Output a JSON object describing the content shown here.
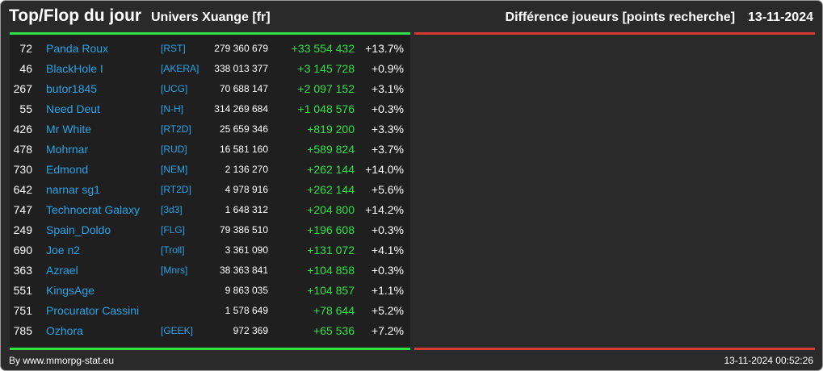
{
  "header": {
    "title": "Top/Flop du jour",
    "universe": "Univers Xuange [fr]",
    "metric": "Différence joueurs [points recherche]",
    "date": "13-11-2024"
  },
  "colors": {
    "top_accent": "#33e046",
    "flop_accent": "#d63a33",
    "link": "#29a3e6",
    "positive": "#33e046"
  },
  "top_rows": [
    {
      "rank": "72",
      "name": "Panda Roux",
      "alliance": "[RST]",
      "points": "279 360 679",
      "diff": "+33 554 432",
      "pct": "+13.7%"
    },
    {
      "rank": "46",
      "name": "BlackHole I",
      "alliance": "[AKERA]",
      "points": "338 013 377",
      "diff": "+3 145 728",
      "pct": "+0.9%"
    },
    {
      "rank": "267",
      "name": "butor1845",
      "alliance": "[UCG]",
      "points": "70 688 147",
      "diff": "+2 097 152",
      "pct": "+3.1%"
    },
    {
      "rank": "55",
      "name": "Need Deut",
      "alliance": "[N-H]",
      "points": "314 269 684",
      "diff": "+1 048 576",
      "pct": "+0.3%"
    },
    {
      "rank": "426",
      "name": "Mr White",
      "alliance": "[RT2D]",
      "points": "25 659 346",
      "diff": "+819 200",
      "pct": "+3.3%"
    },
    {
      "rank": "478",
      "name": "Mohrnar",
      "alliance": "[RUD]",
      "points": "16 581 160",
      "diff": "+589 824",
      "pct": "+3.7%"
    },
    {
      "rank": "730",
      "name": "Edmond",
      "alliance": "[NEM]",
      "points": "2 136 270",
      "diff": "+262 144",
      "pct": "+14.0%"
    },
    {
      "rank": "642",
      "name": "narnar sg1",
      "alliance": "[RT2D]",
      "points": "4 978 916",
      "diff": "+262 144",
      "pct": "+5.6%"
    },
    {
      "rank": "747",
      "name": "Technocrat Galaxy",
      "alliance": "[3d3]",
      "points": "1 648 312",
      "diff": "+204 800",
      "pct": "+14.2%"
    },
    {
      "rank": "249",
      "name": "Spain_Doldo",
      "alliance": "[FLG]",
      "points": "79 386 510",
      "diff": "+196 608",
      "pct": "+0.3%"
    },
    {
      "rank": "690",
      "name": "Joe n2",
      "alliance": "[Troll]",
      "points": "3 361 090",
      "diff": "+131 072",
      "pct": "+4.1%"
    },
    {
      "rank": "363",
      "name": "Azrael",
      "alliance": "[Mnrs]",
      "points": "38 363 841",
      "diff": "+104 858",
      "pct": "+0.3%"
    },
    {
      "rank": "551",
      "name": "KingsAge",
      "alliance": "",
      "points": "9 863 035",
      "diff": "+104 857",
      "pct": "+1.1%"
    },
    {
      "rank": "751",
      "name": "Procurator Cassini",
      "alliance": "",
      "points": "1 578 649",
      "diff": "+78 644",
      "pct": "+5.2%"
    },
    {
      "rank": "785",
      "name": "Ozhora",
      "alliance": "[GEEK]",
      "points": "972 369",
      "diff": "+65 536",
      "pct": "+7.2%"
    }
  ],
  "flop_rows": [],
  "footer": {
    "credit": "By www.mmorpg-stat.eu",
    "generated": "13-11-2024 00:52:26"
  }
}
